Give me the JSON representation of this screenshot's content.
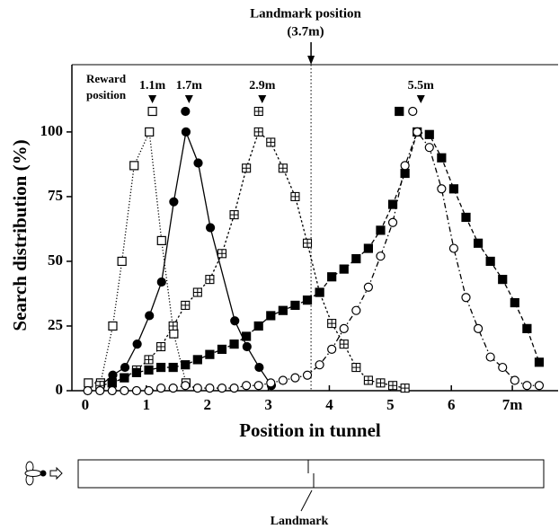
{
  "chart_data": {
    "type": "line",
    "title": [
      "Landmark position",
      "(3.7m)"
    ],
    "landmark_x": 3.7,
    "xlabel": "Position in tunnel",
    "ylabel": "Search distribution (%)",
    "reward_label": [
      "Reward",
      "position"
    ],
    "annotations": [
      {
        "text": "1.1m",
        "x": 1.1
      },
      {
        "text": "1.7m",
        "x": 1.7
      },
      {
        "text": "2.9m",
        "x": 2.9
      },
      {
        "text": "5.5m",
        "x": 5.5
      }
    ],
    "xlim": [
      -0.22,
      7.75
    ],
    "ylim": [
      0,
      126
    ],
    "xticks": [
      0,
      1,
      2,
      3,
      4,
      5,
      6,
      {
        "value": 7,
        "label": "7m"
      }
    ],
    "yticks": [
      0,
      25,
      50,
      75,
      100
    ],
    "series": [
      {
        "marker": "open-square",
        "line_style": "dotted",
        "color": "#000000",
        "x": [
          0.05,
          0.25,
          0.45,
          0.6,
          0.8,
          1.05,
          1.25,
          1.45,
          1.65
        ],
        "values": [
          3,
          3,
          25,
          50,
          87,
          100,
          58,
          22,
          3
        ]
      },
      {
        "marker": "filled-circle",
        "line_style": "solid",
        "color": "#000000",
        "x": [
          0.25,
          0.45,
          0.65,
          0.85,
          1.05,
          1.25,
          1.45,
          1.65,
          1.85,
          2.05,
          2.45,
          2.65,
          2.85,
          3.05
        ],
        "values": [
          2,
          6,
          9,
          18,
          29,
          42,
          73,
          100,
          88,
          63,
          27,
          17,
          9,
          2
        ]
      },
      {
        "marker": "crossed-square",
        "line_style": "short-dash",
        "color": "#000000",
        "x": [
          0.24,
          0.44,
          0.64,
          0.84,
          1.04,
          1.24,
          1.44,
          1.64,
          1.84,
          2.04,
          2.24,
          2.44,
          2.64,
          2.84,
          3.04,
          3.24,
          3.44,
          3.64,
          3.84,
          4.04,
          4.24,
          4.44,
          4.64,
          4.84,
          5.04,
          5.24
        ],
        "values": [
          2,
          3,
          5,
          8,
          12,
          17,
          25,
          33,
          38,
          43,
          53,
          68,
          86,
          100,
          96,
          86,
          75,
          57,
          38,
          26,
          18,
          9,
          4,
          3,
          2,
          1
        ]
      },
      {
        "marker": "filled-square",
        "line_style": "dashed",
        "color": "#000000",
        "x": [
          0.44,
          0.64,
          0.84,
          1.04,
          1.24,
          1.44,
          1.64,
          1.84,
          2.04,
          2.24,
          2.44,
          2.64,
          2.84,
          3.04,
          3.24,
          3.44,
          3.64,
          3.84,
          4.04,
          4.24,
          4.44,
          4.64,
          4.84,
          5.04,
          5.24,
          5.44,
          5.64,
          5.84,
          6.04,
          6.24,
          6.44,
          6.64,
          6.84,
          7.04,
          7.24,
          7.44
        ],
        "values": [
          3,
          5,
          7,
          8,
          9,
          9,
          10,
          12,
          14,
          16,
          18,
          21,
          25,
          29,
          31,
          33,
          35,
          38,
          44,
          47,
          51,
          55,
          62,
          72,
          84,
          100,
          99,
          90,
          78,
          67,
          57,
          50,
          43,
          34,
          24,
          11
        ]
      },
      {
        "marker": "open-circle",
        "line_style": "dash-dot",
        "color": "#000000",
        "x": [
          0.04,
          0.24,
          0.44,
          0.64,
          0.84,
          1.04,
          1.24,
          1.44,
          1.64,
          1.84,
          2.04,
          2.24,
          2.44,
          2.64,
          2.84,
          3.04,
          3.24,
          3.44,
          3.64,
          3.84,
          4.04,
          4.24,
          4.44,
          4.64,
          4.84,
          5.04,
          5.24,
          5.44,
          5.64,
          5.84,
          6.04,
          6.24,
          6.44,
          6.64,
          6.84,
          7.04,
          7.24,
          7.44
        ],
        "values": [
          0,
          0,
          0,
          0,
          0,
          0,
          1,
          1,
          2,
          1,
          1,
          1,
          1,
          2,
          2,
          3,
          4,
          5,
          6,
          10,
          16,
          24,
          31,
          40,
          52,
          65,
          87,
          100,
          94,
          78,
          55,
          36,
          24,
          13,
          9,
          4,
          2,
          2
        ]
      }
    ]
  },
  "tunnel": {
    "label": "Landmark"
  }
}
